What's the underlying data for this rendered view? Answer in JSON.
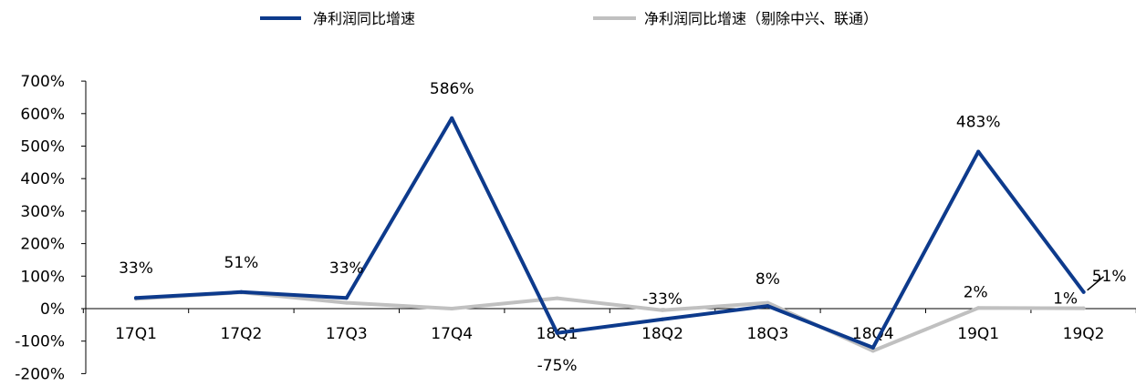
{
  "chart_data": {
    "type": "line",
    "categories": [
      "17Q1",
      "17Q2",
      "17Q3",
      "17Q4",
      "18Q1",
      "18Q2",
      "18Q3",
      "18Q4",
      "19Q1",
      "19Q2"
    ],
    "ylim": [
      -200,
      700
    ],
    "yticks": [
      "700%",
      "600%",
      "500%",
      "400%",
      "300%",
      "200%",
      "100%",
      "0%",
      "-100%",
      "-200%"
    ],
    "ytick_values": [
      700,
      600,
      500,
      400,
      300,
      200,
      100,
      0,
      -100,
      -200
    ],
    "grid": false,
    "legend_position": "top",
    "series": [
      {
        "name": "净利润同比增速",
        "color": "#0d3a8c",
        "values": [
          33,
          51,
          33,
          586,
          -75,
          -33,
          8,
          -120,
          483,
          51
        ],
        "labels": [
          "33%",
          "51%",
          "33%",
          "586%",
          "-75%",
          "-33%",
          "8%",
          "",
          "483%",
          "51%"
        ]
      },
      {
        "name": "净利润同比增速（剔除中兴、联通）",
        "color": "#c0c0c0",
        "values": [
          30,
          50,
          18,
          0,
          32,
          -5,
          18,
          -130,
          2,
          1
        ],
        "labels": [
          "",
          "",
          "",
          "",
          "",
          "",
          "",
          "",
          "2%",
          "1%"
        ]
      }
    ]
  }
}
